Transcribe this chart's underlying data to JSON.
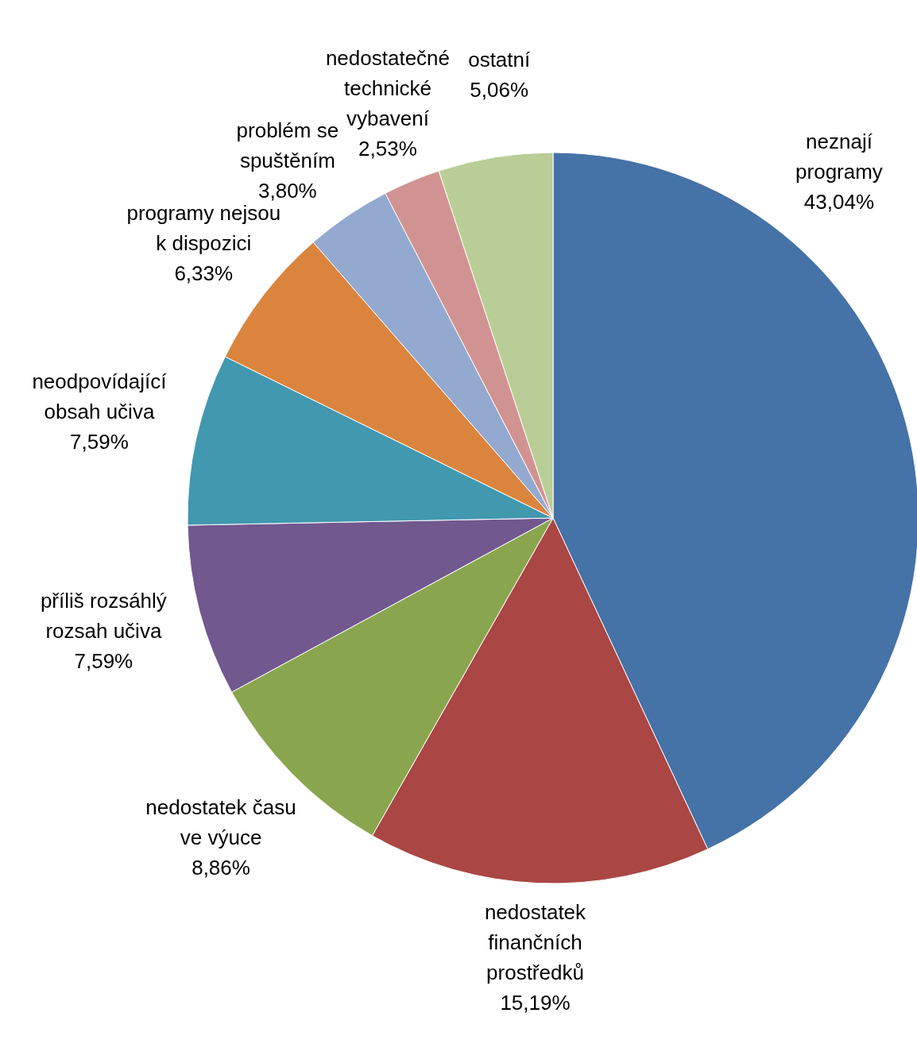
{
  "chart_data": {
    "type": "pie",
    "categories": [
      "neznají programy",
      "nedostatek finančních prostředků",
      "nedostatek času ve výuce",
      "příliš rozsáhlý rozsah učiva",
      "neodpovídající obsah učiva",
      "programy nejsou k dispozici",
      "problém se spuštěním",
      "nedostatečné technické vybavení",
      "ostatní"
    ],
    "values": [
      43.04,
      15.19,
      8.86,
      7.59,
      7.59,
      6.33,
      3.8,
      2.53,
      5.06
    ],
    "value_labels": [
      "43,04%",
      "15,19%",
      "8,86%",
      "7,59%",
      "7,59%",
      "6,33%",
      "3,80%",
      "2,53%",
      "5,06%"
    ],
    "colors": [
      "#4572a7",
      "#aa4643",
      "#89a54e",
      "#71588f",
      "#4198af",
      "#db843d",
      "#93a9cf",
      "#d19392",
      "#b9cd96"
    ]
  }
}
